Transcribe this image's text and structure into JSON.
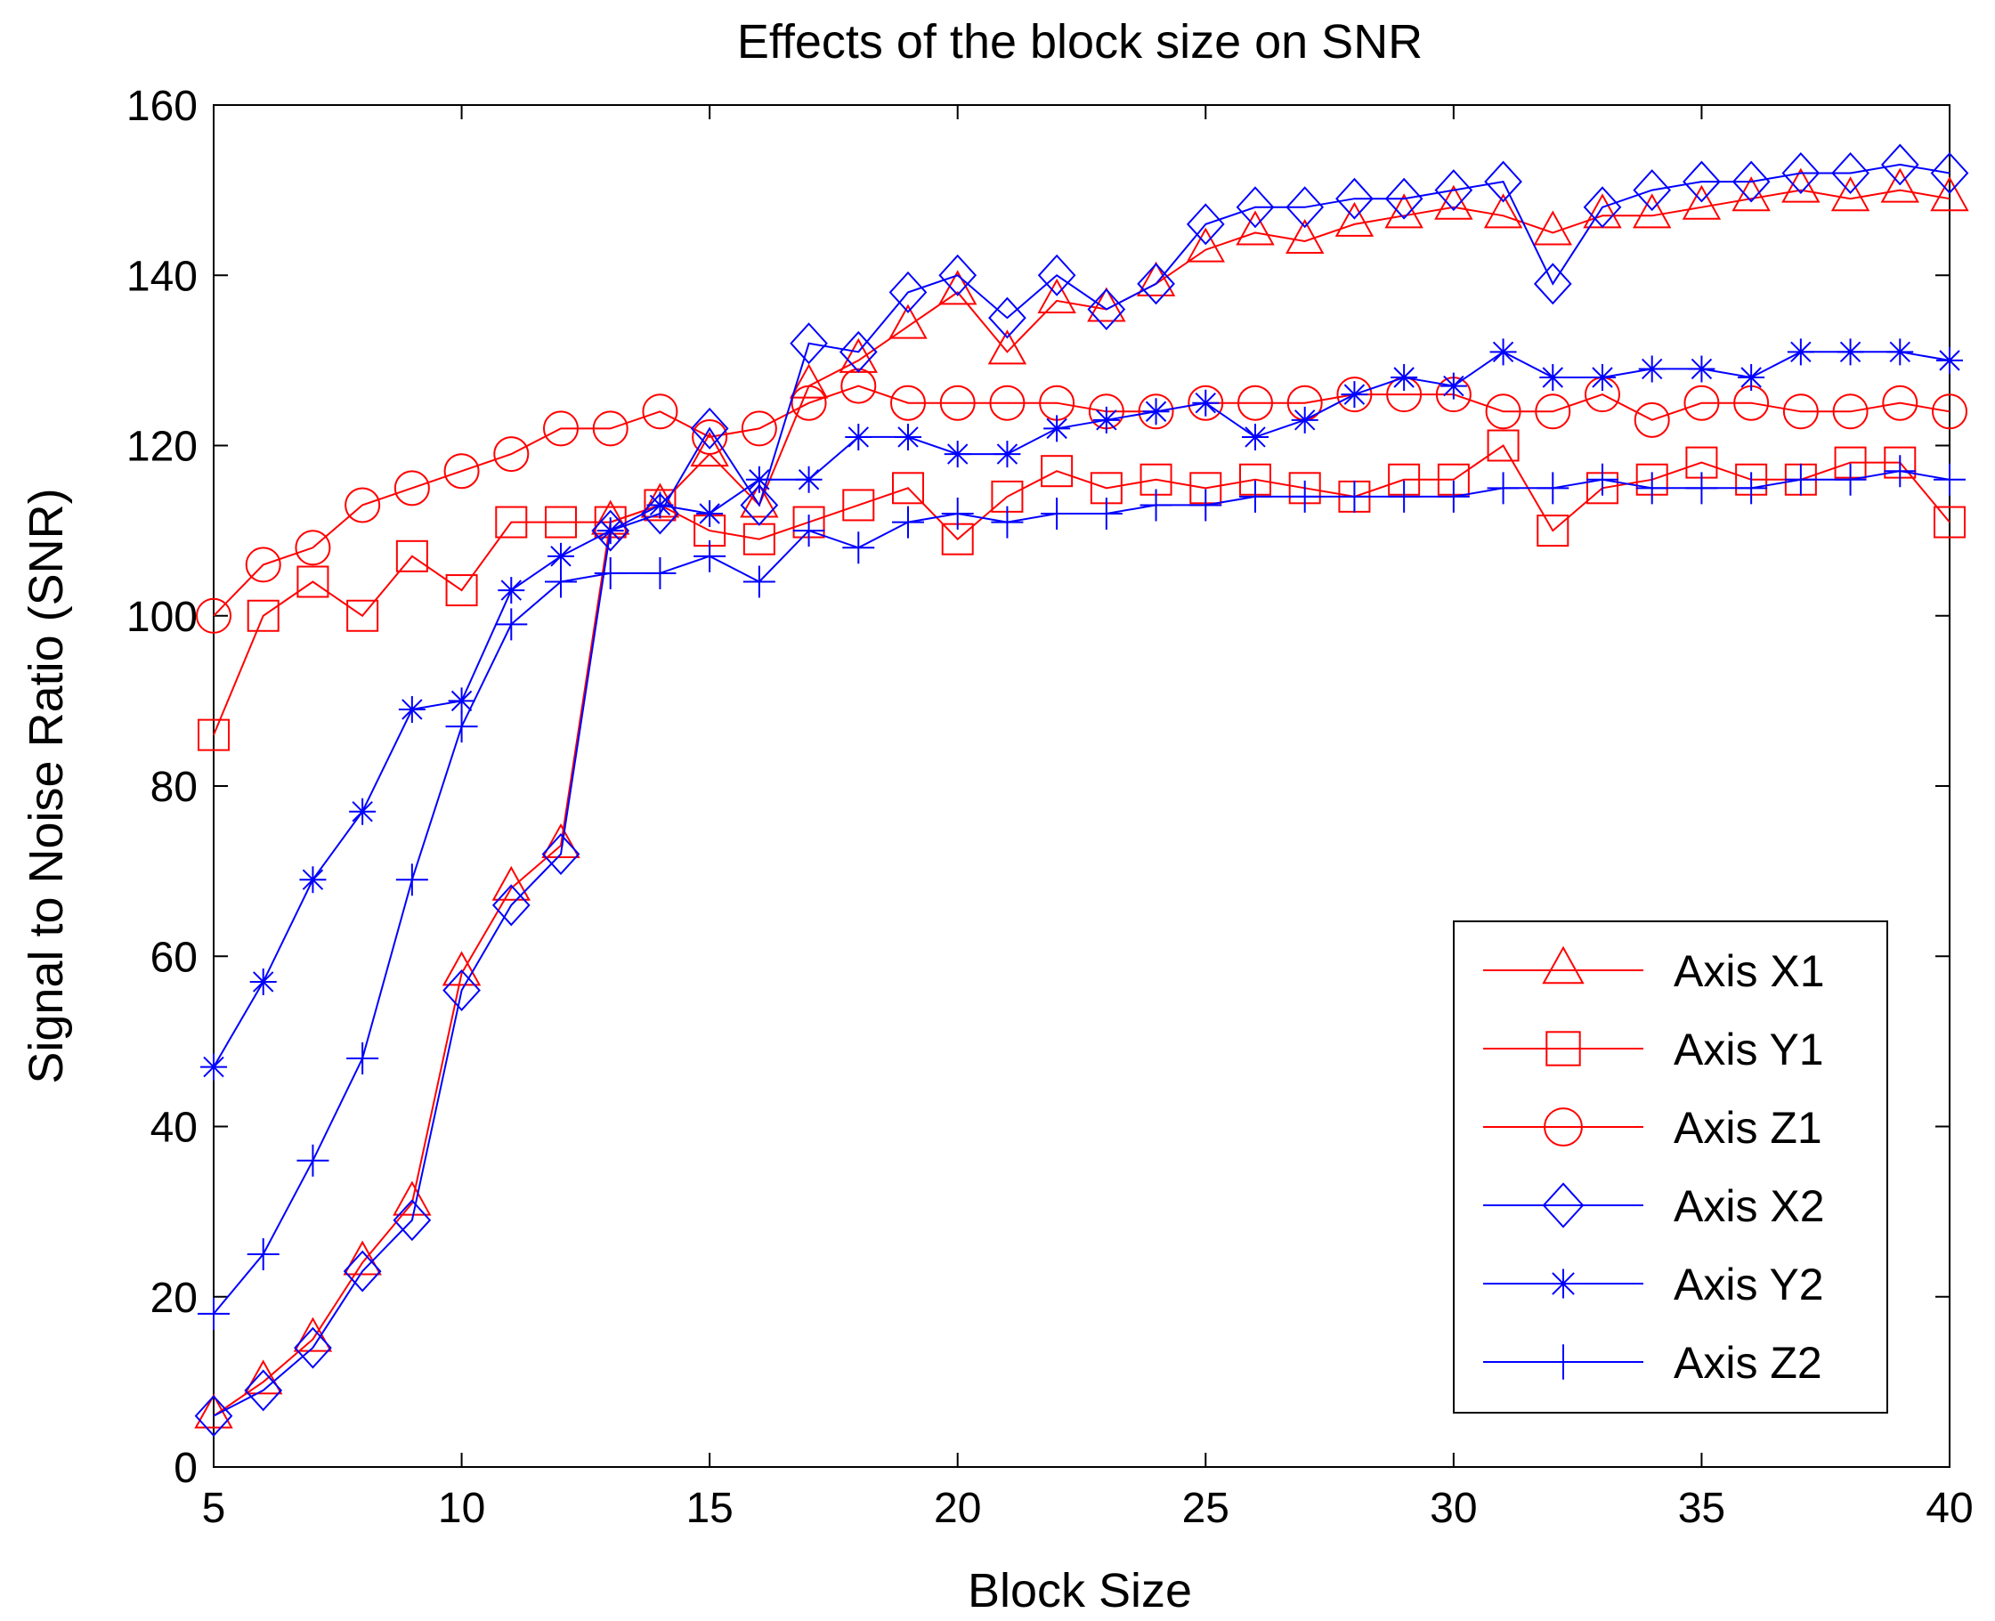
{
  "chart_data": {
    "type": "line",
    "title": "Effects of the block size on SNR",
    "xlabel": "Block Size",
    "ylabel": "Signal to Noise Ratio (SNR)",
    "xlim": [
      5,
      40
    ],
    "ylim": [
      0,
      160
    ],
    "xticks": [
      5,
      10,
      15,
      20,
      25,
      30,
      35,
      40
    ],
    "yticks": [
      0,
      20,
      40,
      60,
      80,
      100,
      120,
      140,
      160
    ],
    "grid": false,
    "legend_position": "bottom-right",
    "x": [
      5,
      6,
      7,
      8,
      9,
      10,
      11,
      12,
      13,
      14,
      15,
      16,
      17,
      18,
      19,
      20,
      21,
      22,
      23,
      24,
      25,
      26,
      27,
      28,
      29,
      30,
      31,
      32,
      33,
      34,
      35,
      36,
      37,
      38,
      39,
      40
    ],
    "series": [
      {
        "name": "Axis X1",
        "color": "#ff0000",
        "marker": "triangle",
        "values": [
          6,
          10,
          15,
          24,
          31,
          58,
          68,
          73,
          111,
          113,
          119,
          113,
          127,
          130,
          134,
          138,
          131,
          137,
          136,
          139,
          143,
          145,
          144,
          146,
          147,
          148,
          147,
          145,
          147,
          147,
          148,
          149,
          150,
          149,
          150,
          149
        ]
      },
      {
        "name": "Axis Y1",
        "color": "#ff0000",
        "marker": "square",
        "values": [
          86,
          100,
          104,
          100,
          107,
          103,
          111,
          111,
          111,
          113,
          110,
          109,
          111,
          113,
          115,
          109,
          114,
          117,
          115,
          116,
          115,
          116,
          115,
          114,
          116,
          116,
          120,
          110,
          115,
          116,
          118,
          116,
          116,
          118,
          118,
          111
        ]
      },
      {
        "name": "Axis Z1",
        "color": "#ff0000",
        "marker": "circle",
        "values": [
          100,
          106,
          108,
          113,
          115,
          117,
          119,
          122,
          122,
          124,
          121,
          122,
          125,
          127,
          125,
          125,
          125,
          125,
          124,
          124,
          125,
          125,
          125,
          126,
          126,
          126,
          124,
          124,
          126,
          123,
          125,
          125,
          124,
          124,
          125,
          124
        ]
      },
      {
        "name": "Axis X2",
        "color": "#0000ff",
        "marker": "diamond",
        "values": [
          6,
          9,
          14,
          23,
          29,
          56,
          66,
          72,
          110,
          112,
          122,
          113,
          132,
          131,
          138,
          140,
          135,
          140,
          136,
          139,
          146,
          148,
          148,
          149,
          149,
          150,
          151,
          139,
          148,
          150,
          151,
          151,
          152,
          152,
          153,
          152
        ]
      },
      {
        "name": "Axis Y2",
        "color": "#0000ff",
        "marker": "star",
        "values": [
          47,
          57,
          69,
          77,
          89,
          90,
          103,
          107,
          110,
          113,
          112,
          116,
          116,
          121,
          121,
          119,
          119,
          122,
          123,
          124,
          125,
          121,
          123,
          126,
          128,
          127,
          131,
          128,
          128,
          129,
          129,
          128,
          131,
          131,
          131,
          130
        ]
      },
      {
        "name": "Axis Z2",
        "color": "#0000ff",
        "marker": "plus",
        "values": [
          18,
          25,
          36,
          48,
          69,
          87,
          99,
          104,
          105,
          105,
          107,
          104,
          110,
          108,
          111,
          112,
          111,
          112,
          112,
          113,
          113,
          114,
          114,
          114,
          114,
          114,
          115,
          115,
          116,
          115,
          115,
          115,
          116,
          116,
          117,
          116
        ]
      }
    ]
  }
}
